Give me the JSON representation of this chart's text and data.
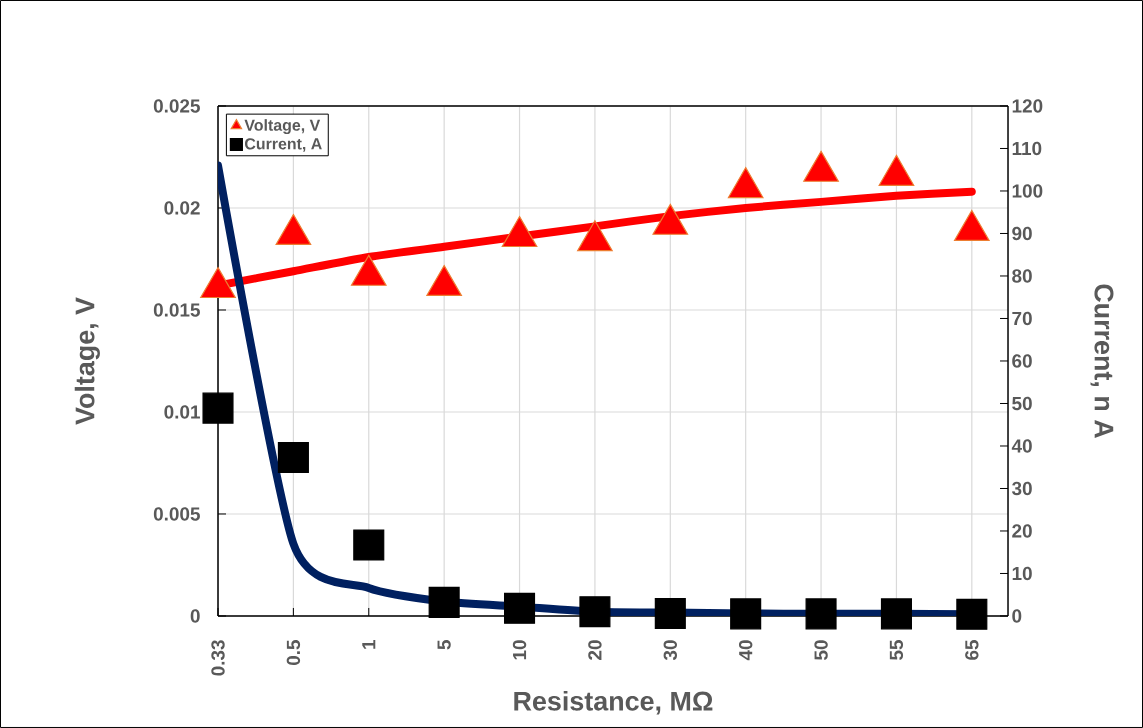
{
  "chart_data": {
    "type": "scatter",
    "xlabel": "Resistance, MΩ",
    "ylabel": "Voltage, V",
    "y2label": "Current, n A",
    "categories": [
      "0.33",
      "0.5",
      "1",
      "5",
      "10",
      "20",
      "30",
      "40",
      "50",
      "55",
      "65"
    ],
    "ylim": [
      0,
      0.025
    ],
    "yticks": [
      0,
      0.005,
      0.01,
      0.015,
      0.02,
      0.025
    ],
    "y2lim": [
      0,
      120
    ],
    "y2ticks": [
      0,
      10,
      20,
      30,
      40,
      50,
      60,
      70,
      80,
      90,
      100,
      110,
      120
    ],
    "grid": true,
    "legend": "top left",
    "series": [
      {
        "type": "line",
        "color": "#ff0000",
        "values": [
          0.0162,
          0.0169,
          0.0176,
          0.0181,
          0.0186,
          0.0191,
          0.0196,
          0.02,
          0.0203,
          0.0206,
          0.0208
        ]
      },
      {
        "type": "line",
        "axis": "y2",
        "color": "#002060",
        "values": [
          106,
          17,
          6.6,
          3.4,
          2.2,
          1.0,
          0.8,
          0.6,
          0.5,
          0.5,
          0.4
        ]
      },
      {
        "name": "Voltage, V",
        "marker": "triangle",
        "color": "#ff0000",
        "values": [
          0.0161,
          0.0187,
          0.0167,
          0.0162,
          0.0186,
          0.0184,
          0.0192,
          0.021,
          0.0218,
          0.0216,
          0.0189
        ]
      },
      {
        "name": "Current, A",
        "axis": "y2",
        "marker": "square",
        "color": "#000000",
        "values": [
          48.9,
          37.3,
          16.7,
          3.2,
          1.8,
          1.0,
          0.6,
          0.5,
          0.5,
          0.5,
          0.4
        ]
      }
    ]
  }
}
